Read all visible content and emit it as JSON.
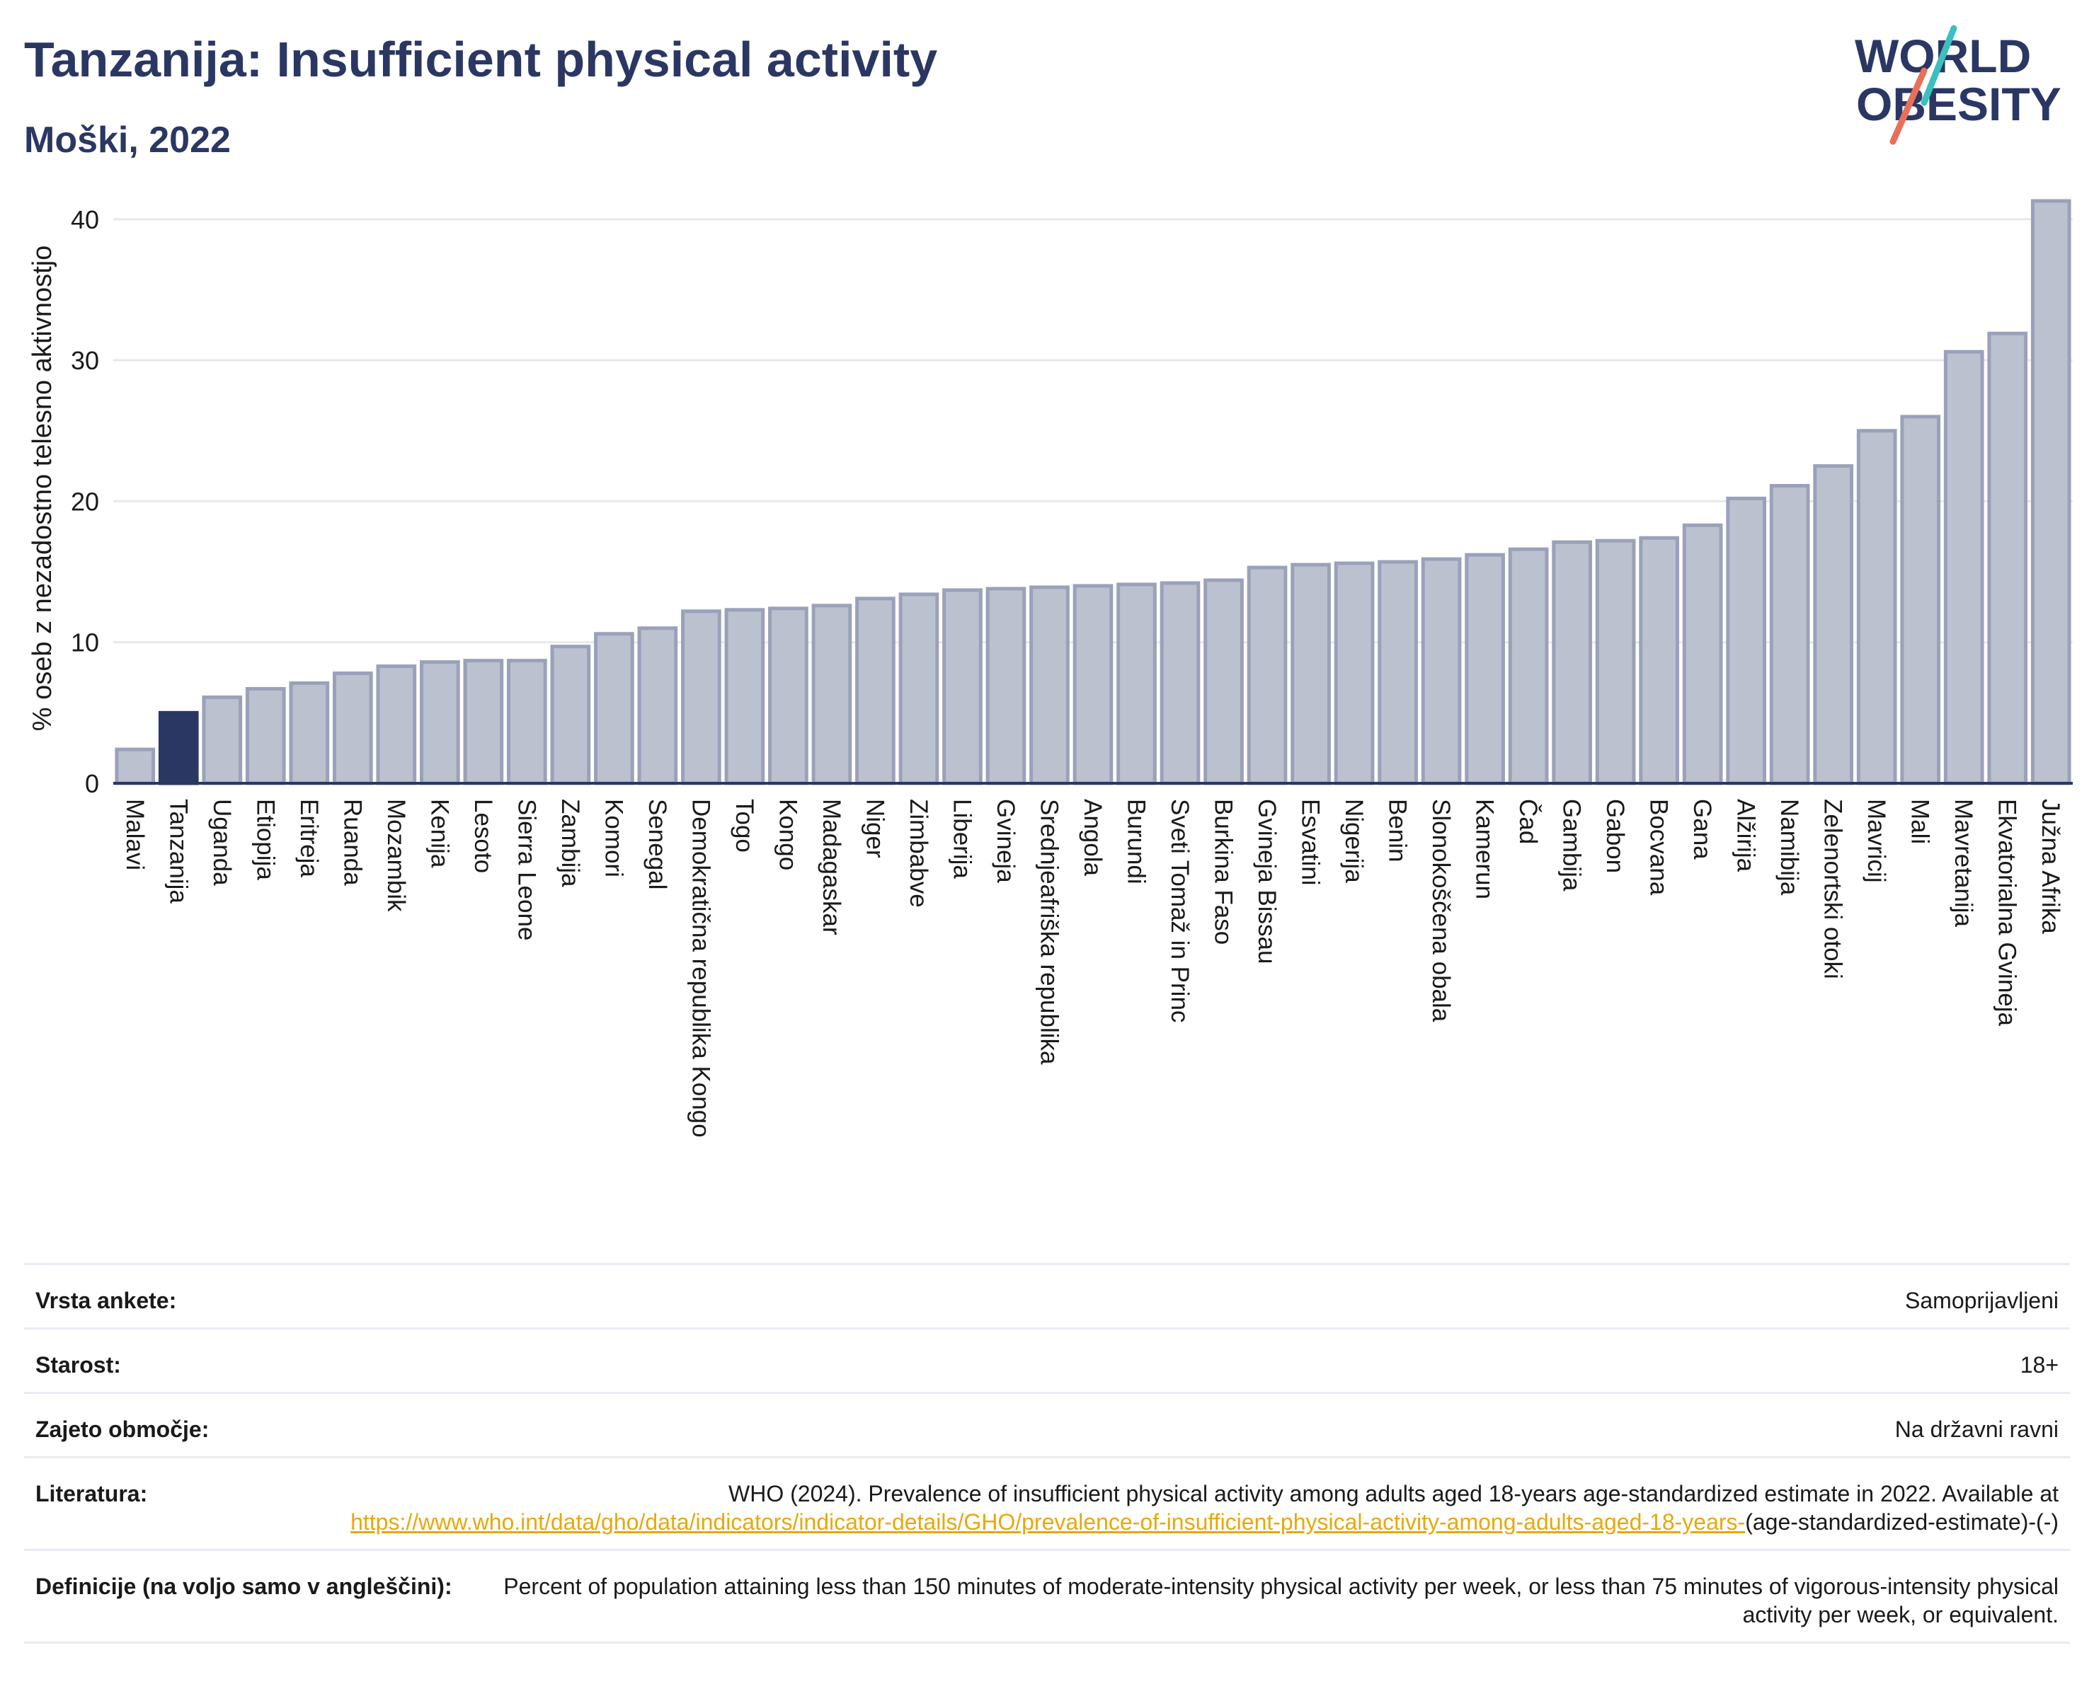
{
  "header": {
    "title": "Tanzanija: Insufficient physical activity",
    "subtitle": "Moški, 2022"
  },
  "logo": {
    "line1": "WORLD",
    "line2": "OBESITY",
    "text_color": "#2b3763",
    "slash_colors": [
      "#3bbfbf",
      "#e8705a"
    ]
  },
  "colors": {
    "bar_default": "#bcc1d0",
    "bar_default_edge": "#9aa1b9",
    "bar_highlight": "#2b3763",
    "axis": "#2b3763",
    "grid": "#e6e8ee"
  },
  "chart_data": {
    "type": "bar",
    "ylabel": "% oseb z nezadostno telesno aktivnostjo",
    "ylim": [
      0,
      42
    ],
    "yticks": [
      0,
      10,
      20,
      30,
      40
    ],
    "grid": true,
    "highlight": "Tanzanija",
    "categories": [
      "Malavi",
      "Tanzanija",
      "Uganda",
      "Etiopija",
      "Eritreja",
      "Ruanda",
      "Mozambik",
      "Kenija",
      "Lesoto",
      "Sierra Leone",
      "Zambija",
      "Komori",
      "Senegal",
      "Demokratična republika Kongo",
      "Togo",
      "Kongo",
      "Madagaskar",
      "Niger",
      "Zimbabve",
      "Liberija",
      "Gvineja",
      "Srednjeafriška republika",
      "Angola",
      "Burundi",
      "Sveti Tomaž in Princ",
      "Burkina Faso",
      "Gvineja Bissau",
      "Esvatini",
      "Nigerija",
      "Benin",
      "Slonokoščena obala",
      "Kamerun",
      "Čad",
      "Gambija",
      "Gabon",
      "Bocvana",
      "Gana",
      "Alžirija",
      "Namibija",
      "Zelenortski otoki",
      "Mavricij",
      "Mali",
      "Mavretanija",
      "Ekvatorialna Gvineja",
      "Južna Afrika"
    ],
    "values": [
      2.4,
      5.0,
      6.1,
      6.7,
      7.1,
      7.8,
      8.3,
      8.6,
      8.7,
      8.7,
      9.7,
      10.6,
      11.0,
      12.2,
      12.3,
      12.4,
      12.6,
      13.1,
      13.4,
      13.7,
      13.8,
      13.9,
      14.0,
      14.1,
      14.2,
      14.4,
      15.3,
      15.5,
      15.6,
      15.7,
      15.9,
      16.2,
      16.6,
      17.1,
      17.2,
      17.4,
      18.3,
      20.2,
      21.1,
      22.5,
      25.0,
      26.0,
      30.6,
      31.9,
      41.3
    ]
  },
  "meta": [
    {
      "label": "Vrsta ankete:",
      "value": "Samoprijavljeni"
    },
    {
      "label": "Starost:",
      "value": "18+"
    },
    {
      "label": "Zajeto območje:",
      "value": "Na državni ravni"
    },
    {
      "label": "Literatura:",
      "value_pre": "WHO (2024). Prevalence of insufficient physical activity among adults aged 18-years age-standardized estimate in 2022. Available at ",
      "value_link": "https://www.who.int/data/gho/data/indicators/indicator-details/GHO/prevalence-of-insufficient-physical-activity-among-adults-aged-18-years-",
      "value_post": "(age-standardized-estimate)-(-)"
    },
    {
      "label": "Definicije (na voljo samo v angleščini):",
      "value": "Percent of population attaining less than 150 minutes of moderate-intensity physical activity per week, or less than 75 minutes of vigorous-intensity physical activity per week, or equivalent."
    }
  ]
}
